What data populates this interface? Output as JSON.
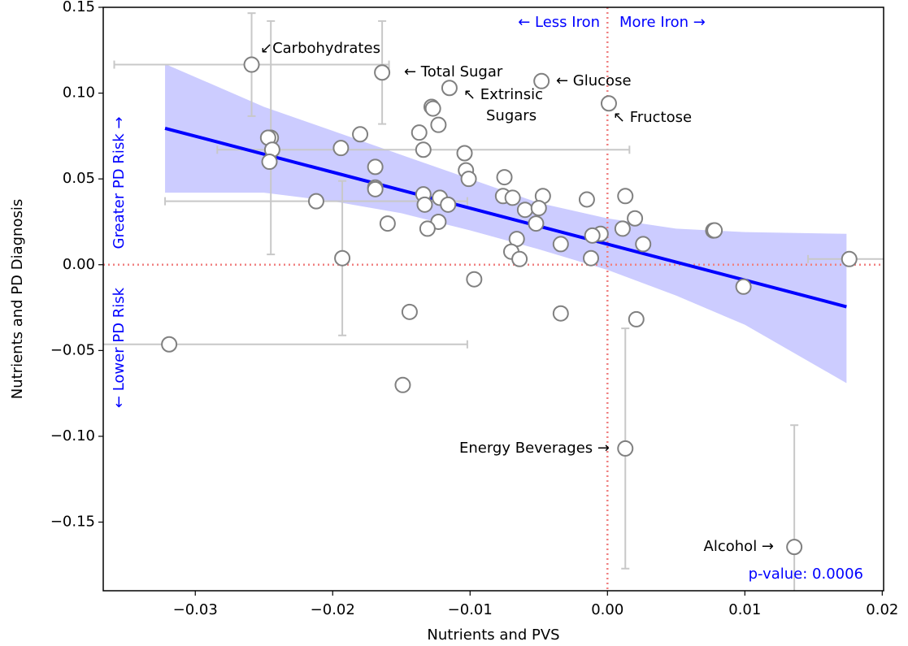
{
  "chart_data": {
    "type": "scatter",
    "xlabel": "Nutrients and PVS",
    "ylabel": "Nutrients and PD Diagnosis",
    "xlim": [
      -0.0367,
      0.0201
    ],
    "ylim": [
      -0.19,
      0.15
    ],
    "xticks": [
      {
        "value": -0.03,
        "label": "−0.03"
      },
      {
        "value": -0.02,
        "label": "−0.02"
      },
      {
        "value": -0.01,
        "label": "−0.01"
      },
      {
        "value": 0,
        "label": "0.00"
      },
      {
        "value": 0.01,
        "label": "0.01"
      },
      {
        "value": 0.02,
        "label": "0.02"
      }
    ],
    "yticks": [
      {
        "value": -0.15,
        "label": "−0.15"
      },
      {
        "value": -0.1,
        "label": "−0.10"
      },
      {
        "value": -0.05,
        "label": "−0.05"
      },
      {
        "value": 0,
        "label": "0.00"
      },
      0.05,
      {
        "value": 0.1,
        "label": "0.10"
      },
      0.15
    ],
    "marker_color": "#808080",
    "errorbar_color": "#c8c8c8",
    "x": [
      -0.0259,
      -0.0164,
      -0.0115,
      -0.0048,
      0.0001,
      -0.0128,
      -0.0127,
      -0.0123,
      -0.018,
      -0.0137,
      -0.0245,
      -0.0247,
      -0.0134,
      -0.0194,
      -0.0244,
      -0.0246,
      -0.0104,
      -0.0103,
      -0.0101,
      -0.0169,
      -0.0075,
      -0.0169,
      -0.0169,
      -0.0134,
      -0.0122,
      -0.0116,
      -0.0133,
      -0.0076,
      -0.0069,
      -0.0047,
      -0.0015,
      0.0013,
      -0.0212,
      -0.006,
      -0.005,
      -0.0052,
      -0.016,
      -0.0123,
      -0.0131,
      -0.0005,
      -0.0011,
      0.0011,
      0.002,
      0.0026,
      -0.0066,
      -0.0034,
      -0.007,
      -0.0064,
      -0.0012,
      -0.0193,
      0.0077,
      0.0078,
      0.0176,
      -0.0097,
      -0.0144,
      -0.0034,
      0.0021,
      0.0099,
      -0.0319,
      -0.0149,
      0.0013,
      0.0136
    ],
    "values": [
      0.1166,
      0.112,
      0.103,
      0.107,
      0.094,
      0.092,
      0.091,
      0.0815,
      0.076,
      0.077,
      0.074,
      0.074,
      0.067,
      0.068,
      0.067,
      0.06,
      0.065,
      0.055,
      0.05,
      0.057,
      0.051,
      0.045,
      0.044,
      0.041,
      0.039,
      0.035,
      0.035,
      0.04,
      0.039,
      0.04,
      0.038,
      0.04,
      0.037,
      0.032,
      0.033,
      0.024,
      0.024,
      0.025,
      0.021,
      0.018,
      0.017,
      0.021,
      0.027,
      0.012,
      0.015,
      0.012,
      0.0076,
      0.0033,
      0.0038,
      0.0038,
      0.0199,
      0.02,
      0.0033,
      -0.0085,
      -0.0275,
      -0.0284,
      -0.0318,
      -0.0128,
      -0.0464,
      -0.0701,
      -0.1071,
      -0.1645
    ],
    "xerr": [
      0.01,
      null,
      null,
      null,
      null,
      null,
      null,
      null,
      null,
      null,
      null,
      null,
      0.015,
      null,
      null,
      null,
      null,
      null,
      null,
      null,
      null,
      null,
      null,
      null,
      null,
      null,
      null,
      null,
      null,
      null,
      null,
      null,
      0.011,
      null,
      null,
      null,
      null,
      null,
      null,
      null,
      null,
      null,
      null,
      null,
      null,
      null,
      null,
      null,
      null,
      null,
      null,
      null,
      0.003,
      null,
      null,
      null,
      null,
      null,
      0.0217,
      null,
      null,
      null
    ],
    "yerr": [
      0.03,
      0.03,
      null,
      null,
      null,
      null,
      null,
      null,
      null,
      null,
      0.068,
      null,
      null,
      null,
      null,
      null,
      null,
      null,
      null,
      null,
      null,
      null,
      null,
      null,
      null,
      null,
      null,
      null,
      null,
      null,
      null,
      null,
      null,
      null,
      null,
      null,
      null,
      null,
      null,
      null,
      null,
      null,
      null,
      null,
      null,
      null,
      null,
      null,
      null,
      0.045,
      null,
      null,
      null,
      null,
      null,
      null,
      null,
      null,
      null,
      null,
      0.07,
      0.071
    ],
    "regression": {
      "color": "#0000ff",
      "x": [
        -0.0322,
        0.0174
      ],
      "y": [
        0.0795,
        -0.0245
      ]
    },
    "band": {
      "color": "#ccccff",
      "x": [
        -0.0322,
        -0.025,
        -0.02,
        -0.015,
        -0.01,
        -0.005,
        0,
        0.005,
        0.01,
        0.0174
      ],
      "upper": [
        0.117,
        0.092,
        0.078,
        0.064,
        0.05,
        0.036,
        0.027,
        0.021,
        0.019,
        0.018
      ],
      "lower": [
        0.042,
        0.042,
        0.037,
        0.03,
        0.02,
        0.009,
        -0.003,
        -0.018,
        -0.035,
        -0.069
      ]
    },
    "reference_lines": {
      "x": 0,
      "y": 0,
      "color": "#f08080"
    },
    "annotations": [
      "↙Carbohydrates",
      "← Total Sugar",
      "↖ Extrinsic",
      "Sugars",
      "← Glucose",
      "↖ Fructose",
      "Energy Beverages →",
      "Alcohol →"
    ],
    "direction_labels": [
      "← Less Iron",
      "More Iron →",
      "← Lower PD Risk",
      "Greater PD Risk →"
    ],
    "direction_color": "#0000ff",
    "p_value_label": "p-value: 0.0006"
  }
}
